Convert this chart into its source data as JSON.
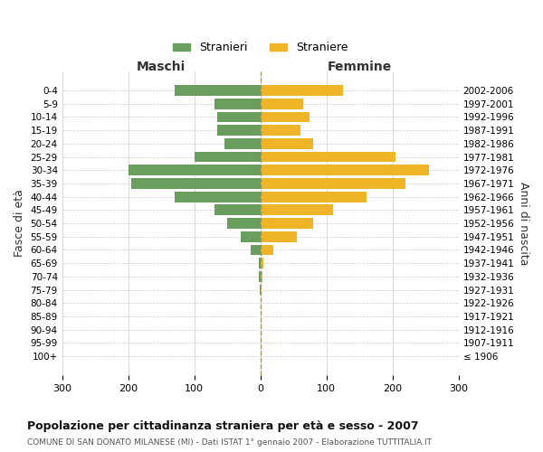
{
  "age_groups": [
    "100+",
    "95-99",
    "90-94",
    "85-89",
    "80-84",
    "75-79",
    "70-74",
    "65-69",
    "60-64",
    "55-59",
    "50-54",
    "45-49",
    "40-44",
    "35-39",
    "30-34",
    "25-29",
    "20-24",
    "15-19",
    "10-14",
    "5-9",
    "0-4"
  ],
  "birth_years": [
    "≤ 1906",
    "1907-1911",
    "1912-1916",
    "1917-1921",
    "1922-1926",
    "1927-1931",
    "1932-1936",
    "1937-1941",
    "1942-1946",
    "1947-1951",
    "1952-1956",
    "1957-1961",
    "1962-1966",
    "1967-1971",
    "1972-1976",
    "1977-1981",
    "1982-1986",
    "1987-1991",
    "1992-1996",
    "1997-2001",
    "2002-2006"
  ],
  "maschi": [
    0,
    0,
    0,
    0,
    0,
    1,
    2,
    3,
    14,
    30,
    50,
    70,
    130,
    195,
    200,
    100,
    55,
    65,
    65,
    70,
    130
  ],
  "femmine": [
    0,
    0,
    0,
    0,
    0,
    2,
    3,
    5,
    20,
    55,
    80,
    110,
    160,
    220,
    255,
    205,
    80,
    60,
    75,
    65,
    125
  ],
  "male_color": "#6a9e5f",
  "female_color": "#f0b429",
  "bar_height": 0.8,
  "xlim": 300,
  "title": "Popolazione per cittadinanza straniera per età e sesso - 2007",
  "subtitle": "COMUNE DI SAN DONATO MILANESE (MI) - Dati ISTAT 1° gennaio 2007 - Elaborazione TUTTITALIA.IT",
  "xlabel_left": "Maschi",
  "xlabel_right": "Femmine",
  "ylabel_left": "Fasce di età",
  "ylabel_right": "Anni di nascita",
  "legend_male": "Stranieri",
  "legend_female": "Straniere",
  "bg_color": "#ffffff",
  "grid_color": "#cccccc",
  "dashed_line_color": "#999966"
}
